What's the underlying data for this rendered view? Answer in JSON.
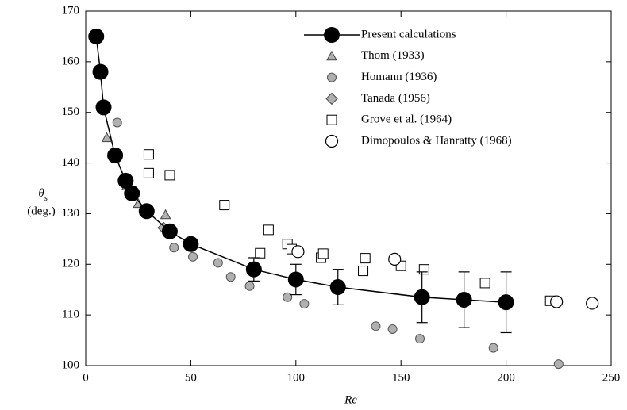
{
  "chart_data": {
    "type": "scatter",
    "xlabel": "Re",
    "ylabel_symbol": "θ",
    "ylabel_subscript": "s",
    "ylabel_unit": "(deg.)",
    "xlim": [
      0,
      250
    ],
    "xticks": [
      0,
      50,
      100,
      150,
      200,
      250
    ],
    "ylim": [
      100,
      170
    ],
    "yticks": [
      100,
      110,
      120,
      130,
      140,
      150,
      160,
      170
    ],
    "legend": "upper right",
    "series": [
      {
        "name": "Present calculations",
        "marker": "line-filled-circle",
        "color": "#000000",
        "x": [
          5,
          7,
          8.5,
          14,
          19,
          22,
          29,
          40,
          50,
          80,
          100,
          120,
          160,
          180,
          200
        ],
        "values": [
          165,
          158,
          151,
          141.5,
          136.5,
          134,
          130.5,
          126.5,
          124,
          119,
          117,
          115.5,
          113.5,
          113,
          112.5
        ],
        "errors": [
          null,
          null,
          null,
          null,
          null,
          null,
          null,
          null,
          null,
          2.3,
          3,
          3.5,
          5,
          5.5,
          6
        ]
      },
      {
        "name": "Thom (1933)",
        "marker": "triangle",
        "color": "#b0b0b0",
        "x": [
          10,
          19.5,
          25,
          38
        ],
        "values": [
          145,
          135.5,
          132,
          129.8
        ]
      },
      {
        "name": "Homann (1936)",
        "marker": "circle",
        "color": "#b0b0b0",
        "x": [
          15,
          42,
          51,
          63,
          69,
          78,
          96,
          104,
          138,
          146,
          159,
          194,
          225
        ],
        "values": [
          148,
          123.3,
          121.5,
          120.3,
          117.5,
          115.7,
          113.5,
          112.2,
          107.8,
          107.2,
          105.3,
          103.5,
          100.3
        ]
      },
      {
        "name": "Tanada (1956)",
        "marker": "diamond",
        "color": "#b0b0b0",
        "x": [
          37
        ],
        "values": [
          127.2
        ]
      },
      {
        "name": "Grove et al. (1964)",
        "marker": "square",
        "color": "#ffffff",
        "x": [
          30,
          30,
          40,
          66,
          83,
          87,
          96,
          98,
          112,
          113,
          132,
          133,
          150,
          161,
          190,
          221
        ],
        "values": [
          141.7,
          138,
          137.6,
          131.7,
          122.2,
          126.8,
          124,
          123,
          121.3,
          122.1,
          118.7,
          121.2,
          119.7,
          119,
          116.3,
          112.8
        ]
      },
      {
        "name": "Dimopoulos & Hanratty (1968)",
        "marker": "open-circle",
        "color": "#ffffff",
        "x": [
          101,
          147,
          224,
          241
        ],
        "values": [
          122.5,
          121,
          112.6,
          112.3
        ]
      }
    ]
  }
}
